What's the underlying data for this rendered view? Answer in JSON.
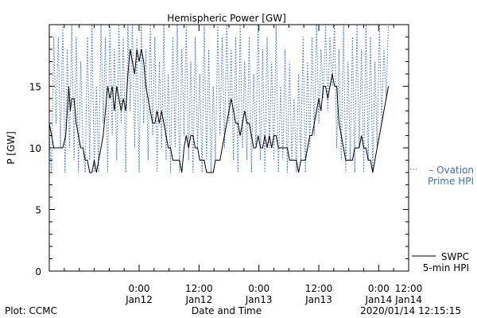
{
  "chart_data": {
    "type": "line",
    "title": "Hemispheric Power [GW]",
    "ylabel": "P [GW]",
    "xlabel": "Date and Time",
    "ylim": [
      0,
      20
    ],
    "yticks": [
      0,
      5,
      10,
      15
    ],
    "x_unit": "hours from 2020/01/11 12:00",
    "xlim": [
      0,
      48
    ],
    "xticks": [
      {
        "x": 12,
        "time": "0:00",
        "date": "Jan12"
      },
      {
        "x": 20,
        "time": "12:00",
        "date": "Jan12"
      },
      {
        "x": 28,
        "time": "0:00",
        "date": "Jan13"
      },
      {
        "x": 36,
        "time": "12:00",
        "date": "Jan13"
      },
      {
        "x": 44,
        "time": "0:00",
        "date": "Jan14"
      },
      {
        "x": 48,
        "time": "12:00",
        "date": "Jan14"
      }
    ],
    "series": [
      {
        "name": "SWPC 5-min HPI",
        "line_label": [
          "SWPC",
          "5-min HPI"
        ],
        "color": "#000000",
        "style": "solid",
        "points": [
          [
            0,
            12
          ],
          [
            0.3,
            11
          ],
          [
            0.6,
            10
          ],
          [
            1.0,
            10
          ],
          [
            1.4,
            10
          ],
          [
            1.8,
            10
          ],
          [
            2.2,
            11
          ],
          [
            2.4,
            13
          ],
          [
            2.6,
            15
          ],
          [
            2.8,
            13
          ],
          [
            3.0,
            14
          ],
          [
            3.3,
            14
          ],
          [
            3.6,
            12
          ],
          [
            3.9,
            11
          ],
          [
            4.2,
            10
          ],
          [
            4.5,
            10
          ],
          [
            4.8,
            9
          ],
          [
            5.1,
            9
          ],
          [
            5.4,
            8
          ],
          [
            5.7,
            8
          ],
          [
            6.0,
            9
          ],
          [
            6.3,
            8
          ],
          [
            6.6,
            9
          ],
          [
            6.9,
            10
          ],
          [
            7.2,
            11
          ],
          [
            7.5,
            13
          ],
          [
            7.8,
            15
          ],
          [
            8.1,
            14
          ],
          [
            8.4,
            15
          ],
          [
            8.7,
            13
          ],
          [
            9.0,
            15
          ],
          [
            9.3,
            14
          ],
          [
            9.6,
            13
          ],
          [
            9.9,
            14
          ],
          [
            10.2,
            13
          ],
          [
            10.5,
            16
          ],
          [
            10.8,
            18
          ],
          [
            11.1,
            17
          ],
          [
            11.4,
            16
          ],
          [
            11.7,
            18
          ],
          [
            12.0,
            17
          ],
          [
            12.3,
            18
          ],
          [
            12.6,
            17
          ],
          [
            12.9,
            15
          ],
          [
            13.2,
            14
          ],
          [
            13.5,
            13
          ],
          [
            13.8,
            12
          ],
          [
            14.1,
            12
          ],
          [
            14.4,
            13
          ],
          [
            14.7,
            12
          ],
          [
            15.0,
            13
          ],
          [
            15.3,
            12
          ],
          [
            15.6,
            11
          ],
          [
            15.9,
            10
          ],
          [
            16.2,
            10
          ],
          [
            16.5,
            9
          ],
          [
            16.8,
            9
          ],
          [
            17.1,
            9
          ],
          [
            17.4,
            9
          ],
          [
            17.7,
            8
          ],
          [
            18.0,
            10
          ],
          [
            18.3,
            11
          ],
          [
            18.6,
            10
          ],
          [
            18.9,
            11
          ],
          [
            19.2,
            11
          ],
          [
            19.5,
            10
          ],
          [
            19.8,
            10
          ],
          [
            20.1,
            9
          ],
          [
            20.4,
            9
          ],
          [
            20.7,
            9
          ],
          [
            21.0,
            8
          ],
          [
            21.3,
            8
          ],
          [
            21.6,
            8
          ],
          [
            21.9,
            8
          ],
          [
            22.2,
            9
          ],
          [
            22.5,
            9
          ],
          [
            22.8,
            9
          ],
          [
            23.1,
            10
          ],
          [
            23.4,
            11
          ],
          [
            23.7,
            12
          ],
          [
            24.0,
            13
          ],
          [
            24.3,
            14
          ],
          [
            24.6,
            13
          ],
          [
            24.9,
            12
          ],
          [
            25.2,
            12
          ],
          [
            25.5,
            11
          ],
          [
            25.8,
            12
          ],
          [
            26.1,
            13
          ],
          [
            26.4,
            12
          ],
          [
            26.7,
            12
          ],
          [
            27.0,
            11
          ],
          [
            27.3,
            10
          ],
          [
            27.6,
            10
          ],
          [
            27.9,
            11
          ],
          [
            28.2,
            10
          ],
          [
            28.5,
            10
          ],
          [
            28.8,
            11
          ],
          [
            29.1,
            10
          ],
          [
            29.4,
            11
          ],
          [
            29.7,
            10
          ],
          [
            30.0,
            11
          ],
          [
            30.3,
            11
          ],
          [
            30.6,
            10
          ],
          [
            30.9,
            10
          ],
          [
            31.2,
            10
          ],
          [
            31.5,
            10
          ],
          [
            31.8,
            10
          ],
          [
            32.1,
            9
          ],
          [
            32.4,
            9
          ],
          [
            32.7,
            9
          ],
          [
            33.0,
            9
          ],
          [
            33.3,
            8
          ],
          [
            33.6,
            9
          ],
          [
            33.9,
            9
          ],
          [
            34.2,
            9
          ],
          [
            34.5,
            10
          ],
          [
            34.8,
            11
          ],
          [
            35.1,
            11
          ],
          [
            35.4,
            12
          ],
          [
            35.7,
            13
          ],
          [
            36.0,
            14
          ],
          [
            36.3,
            13
          ],
          [
            36.6,
            15
          ],
          [
            36.9,
            15
          ],
          [
            37.2,
            14
          ],
          [
            37.5,
            15
          ],
          [
            37.8,
            16
          ],
          [
            38.1,
            15
          ],
          [
            38.4,
            15
          ],
          [
            38.7,
            12
          ],
          [
            39.0,
            11
          ],
          [
            39.3,
            10
          ],
          [
            39.6,
            9
          ],
          [
            39.9,
            9
          ],
          [
            40.2,
            9
          ],
          [
            40.5,
            9
          ],
          [
            40.8,
            10
          ],
          [
            41.1,
            10
          ],
          [
            41.4,
            10
          ],
          [
            41.7,
            11
          ],
          [
            42.0,
            10
          ],
          [
            42.3,
            10
          ],
          [
            42.6,
            9
          ],
          [
            42.9,
            9
          ],
          [
            43.2,
            8
          ],
          [
            43.5,
            9
          ],
          [
            43.8,
            10
          ],
          [
            44.1,
            11
          ],
          [
            44.4,
            12
          ],
          [
            44.7,
            13
          ],
          [
            45.0,
            14
          ],
          [
            45.3,
            15
          ]
        ]
      },
      {
        "name": "Ovation Prime HPI",
        "line_label": [
          "– Ovation",
          "Prime HPI"
        ],
        "color": "#3a6fcf",
        "style": "dotted",
        "points": [
          [
            0,
            11
          ],
          [
            0.3,
            8
          ],
          [
            0.6,
            19
          ],
          [
            0.9,
            12
          ],
          [
            1.2,
            19
          ],
          [
            1.5,
            10
          ],
          [
            1.8,
            20
          ],
          [
            2.1,
            8
          ],
          [
            2.4,
            18
          ],
          [
            2.7,
            10
          ],
          [
            3.0,
            20
          ],
          [
            3.3,
            9
          ],
          [
            3.6,
            19
          ],
          [
            3.9,
            8
          ],
          [
            4.2,
            17
          ],
          [
            4.5,
            10
          ],
          [
            4.8,
            8
          ],
          [
            5.1,
            19
          ],
          [
            5.4,
            9
          ],
          [
            5.7,
            20
          ],
          [
            6.0,
            8
          ],
          [
            6.3,
            15
          ],
          [
            6.6,
            8
          ],
          [
            6.9,
            20
          ],
          [
            7.2,
            12
          ],
          [
            7.5,
            19
          ],
          [
            7.8,
            8
          ],
          [
            8.1,
            20
          ],
          [
            8.4,
            11
          ],
          [
            8.7,
            18
          ],
          [
            9.0,
            9
          ],
          [
            9.3,
            20
          ],
          [
            9.6,
            12
          ],
          [
            9.9,
            19
          ],
          [
            10.2,
            8
          ],
          [
            10.5,
            20
          ],
          [
            10.8,
            13
          ],
          [
            11.1,
            20
          ],
          [
            11.4,
            10
          ],
          [
            11.7,
            19
          ],
          [
            12.0,
            8
          ],
          [
            12.3,
            20
          ],
          [
            12.6,
            12
          ],
          [
            12.9,
            18
          ],
          [
            13.2,
            9
          ],
          [
            13.5,
            20
          ],
          [
            13.8,
            11
          ],
          [
            14.1,
            19
          ],
          [
            14.4,
            8
          ],
          [
            14.7,
            17
          ],
          [
            15.0,
            10
          ],
          [
            15.3,
            20
          ],
          [
            15.6,
            9
          ],
          [
            15.9,
            16
          ],
          [
            16.2,
            8
          ],
          [
            16.5,
            19
          ],
          [
            16.8,
            10
          ],
          [
            17.1,
            20
          ],
          [
            17.4,
            8
          ],
          [
            17.7,
            18
          ],
          [
            18.0,
            11
          ],
          [
            18.3,
            20
          ],
          [
            18.6,
            9
          ],
          [
            18.9,
            17
          ],
          [
            19.2,
            8
          ],
          [
            19.5,
            19
          ],
          [
            19.8,
            10
          ],
          [
            20.1,
            16
          ],
          [
            20.4,
            8
          ],
          [
            20.7,
            20
          ],
          [
            21.0,
            9
          ],
          [
            21.3,
            18
          ],
          [
            21.6,
            8
          ],
          [
            21.9,
            15
          ],
          [
            22.2,
            9
          ],
          [
            22.5,
            20
          ],
          [
            22.8,
            11
          ],
          [
            23.1,
            19
          ],
          [
            23.4,
            10
          ],
          [
            23.7,
            20
          ],
          [
            24.0,
            12
          ],
          [
            24.3,
            18
          ],
          [
            24.6,
            9
          ],
          [
            24.9,
            19
          ],
          [
            25.2,
            8
          ],
          [
            25.5,
            20
          ],
          [
            25.8,
            10
          ],
          [
            26.1,
            17
          ],
          [
            26.4,
            9
          ],
          [
            26.7,
            19
          ],
          [
            27.0,
            8
          ],
          [
            27.3,
            16
          ],
          [
            27.6,
            10
          ],
          [
            27.9,
            20
          ],
          [
            28.2,
            9
          ],
          [
            28.5,
            18
          ],
          [
            28.8,
            8
          ],
          [
            29.1,
            19
          ],
          [
            29.4,
            10
          ],
          [
            29.7,
            17
          ],
          [
            30.0,
            9
          ],
          [
            30.3,
            20
          ],
          [
            30.6,
            8
          ],
          [
            30.9,
            15
          ],
          [
            31.2,
            9
          ],
          [
            31.5,
            18
          ],
          [
            31.8,
            8
          ],
          [
            32.1,
            17
          ],
          [
            32.4,
            9
          ],
          [
            32.7,
            14
          ],
          [
            33.0,
            8
          ],
          [
            33.3,
            16
          ],
          [
            33.6,
            9
          ],
          [
            33.9,
            19
          ],
          [
            34.2,
            8
          ],
          [
            34.5,
            17
          ],
          [
            34.8,
            10
          ],
          [
            35.1,
            19
          ],
          [
            35.4,
            11
          ],
          [
            35.7,
            20
          ],
          [
            36.0,
            12
          ],
          [
            36.3,
            18
          ],
          [
            36.6,
            14
          ],
          [
            36.9,
            20
          ],
          [
            37.2,
            13
          ],
          [
            37.5,
            19
          ],
          [
            37.8,
            15
          ],
          [
            38.1,
            20
          ],
          [
            38.4,
            10
          ],
          [
            38.7,
            18
          ],
          [
            39.0,
            9
          ],
          [
            39.3,
            20
          ],
          [
            39.6,
            8
          ],
          [
            39.9,
            17
          ],
          [
            40.2,
            9
          ],
          [
            40.5,
            19
          ],
          [
            40.8,
            8
          ],
          [
            41.1,
            20
          ],
          [
            41.4,
            10
          ],
          [
            41.7,
            18
          ],
          [
            42.0,
            8
          ],
          [
            42.3,
            20
          ],
          [
            42.6,
            9
          ],
          [
            42.9,
            19
          ],
          [
            43.2,
            8
          ],
          [
            43.5,
            17
          ],
          [
            43.8,
            10
          ],
          [
            44.1,
            20
          ],
          [
            44.4,
            12
          ],
          [
            44.7,
            18
          ],
          [
            45.0,
            14
          ],
          [
            45.3,
            20
          ]
        ]
      }
    ]
  },
  "footer": {
    "left": "Plot: CCMC",
    "timestamp": "2020/01/14 12:15:15"
  }
}
